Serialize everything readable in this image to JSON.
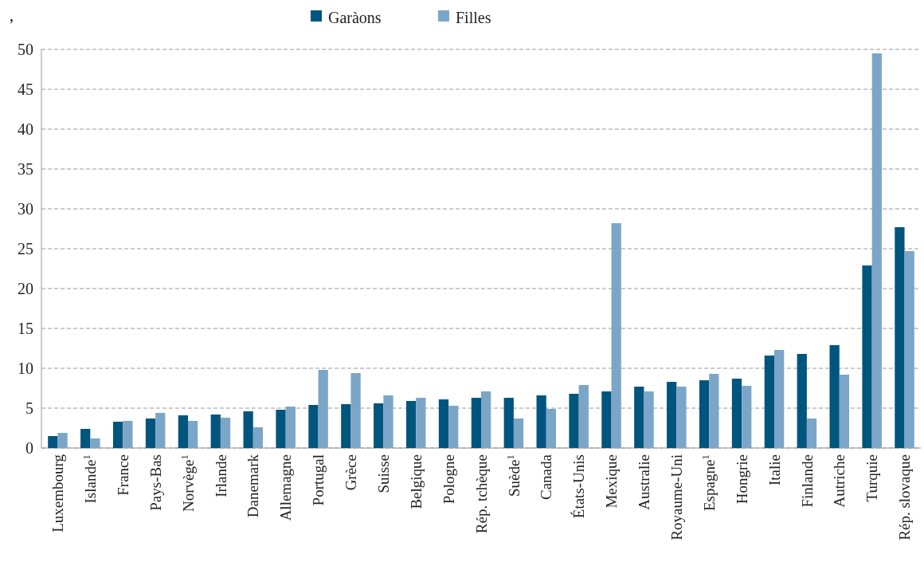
{
  "chart_data": {
    "type": "bar",
    "title": ",",
    "categories": [
      "Luxembourg",
      "Islande$^{1}$",
      "France",
      "Pays-Bas",
      "Norvège$^{1}$",
      "Irlande",
      "Danemark",
      "Allemagne",
      "Portugal",
      "Grèce",
      "Suisse",
      "Belgique",
      "Pologne",
      "Rép. tchèque",
      "Suède$^{1}$",
      "Canada",
      "États-Unis",
      "Mexique",
      "Australie",
      "Royaume-Uni",
      "Espagne$^{1}$",
      "Hongrie",
      "Italie",
      "Finlande",
      "Autriche",
      "Turquie",
      "Rép. slovaque"
    ],
    "series": [
      {
        "name": "Garàons",
        "color": "#00557f",
        "values": [
          1.5,
          2.4,
          3.3,
          3.7,
          4.1,
          4.2,
          4.6,
          4.8,
          5.4,
          5.5,
          5.6,
          5.9,
          6.1,
          6.3,
          6.3,
          6.6,
          6.8,
          7.1,
          7.7,
          8.3,
          8.5,
          8.7,
          11.6,
          11.8,
          12.9,
          22.9,
          27.7
        ]
      },
      {
        "name": "Filles",
        "color": "#7ba6c7",
        "values": [
          1.9,
          1.2,
          3.4,
          4.4,
          3.4,
          3.8,
          2.6,
          5.2,
          9.8,
          9.4,
          6.6,
          6.3,
          5.3,
          7.1,
          3.7,
          4.9,
          7.9,
          28.2,
          7.1,
          7.7,
          9.3,
          7.8,
          12.3,
          3.7,
          9.2,
          49.5,
          24.7
        ]
      }
    ],
    "ylim": [
      0,
      50
    ],
    "yticks": [
      0,
      5,
      10,
      15,
      20,
      25,
      30,
      35,
      40,
      45,
      50
    ],
    "grid": "y",
    "legend": "top"
  }
}
